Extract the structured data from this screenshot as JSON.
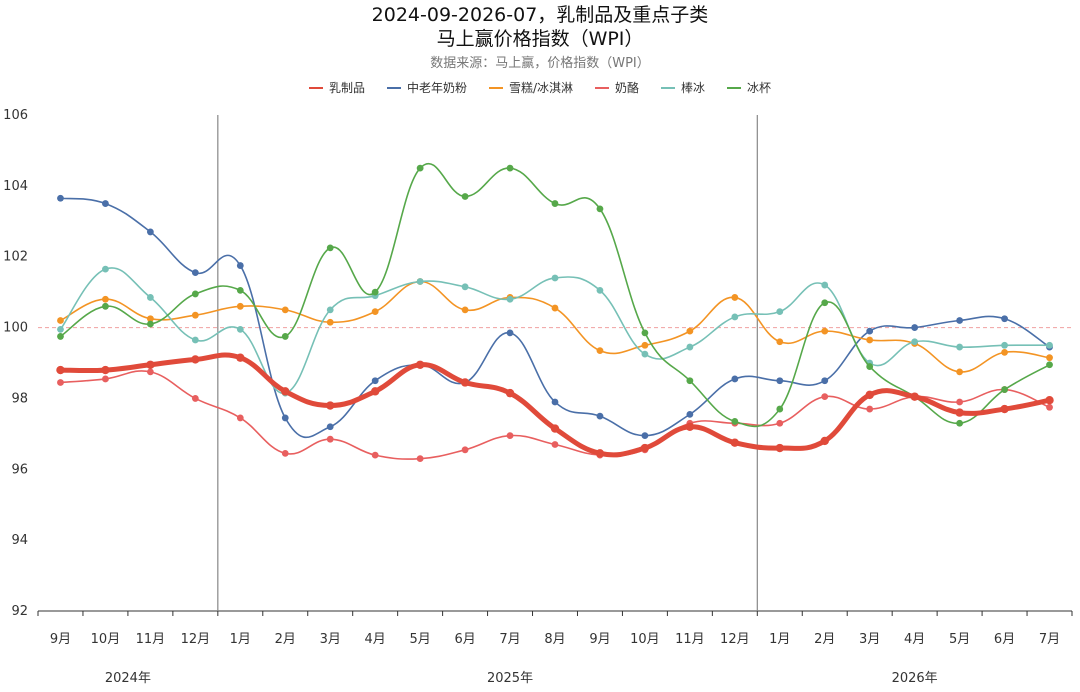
{
  "chart_data": {
    "type": "line",
    "title": "2024-09-2026-07，乳制品及重点子类",
    "title_line2": "马上赢价格指数（WPI）",
    "subtitle": "数据来源：马上赢，价格指数（WPI）",
    "categories": [
      "9月",
      "10月",
      "11月",
      "12月",
      "1月",
      "2月",
      "3月",
      "4月",
      "5月",
      "6月",
      "7月",
      "8月",
      "9月",
      "10月",
      "11月",
      "12月",
      "1月",
      "2月",
      "3月",
      "4月",
      "5月",
      "6月",
      "7月"
    ],
    "year_labels": [
      {
        "label": "2024年",
        "index": 1.5
      },
      {
        "label": "2025年",
        "index": 10
      },
      {
        "label": "2026年",
        "index": 19
      }
    ],
    "year_separators_after_index": [
      3,
      15
    ],
    "ylim": [
      92,
      106
    ],
    "yticks": [
      92,
      94,
      96,
      98,
      100,
      102,
      104,
      106
    ],
    "reference_line": 100,
    "grid": false,
    "legend_position": "top",
    "series": [
      {
        "name": "乳制品",
        "color": "#e04a3a",
        "emphasis": true,
        "values": [
          98.8,
          98.8,
          98.95,
          99.1,
          99.15,
          98.2,
          97.8,
          98.2,
          98.95,
          98.45,
          98.15,
          97.15,
          96.45,
          96.6,
          97.2,
          96.75,
          96.6,
          96.8,
          98.1,
          98.05,
          97.6,
          97.7,
          97.95
        ]
      },
      {
        "name": "中老年奶粉",
        "color": "#4a6fa8",
        "values": [
          103.65,
          103.5,
          102.7,
          101.55,
          101.75,
          97.45,
          97.2,
          98.5,
          98.95,
          98.45,
          99.85,
          97.9,
          97.5,
          96.95,
          97.55,
          98.55,
          98.5,
          98.5,
          99.9,
          100.0,
          100.2,
          100.25,
          99.45
        ]
      },
      {
        "name": "雪糕/冰淇淋",
        "color": "#f39424",
        "values": [
          100.2,
          100.8,
          100.25,
          100.35,
          100.6,
          100.5,
          100.15,
          100.45,
          101.3,
          100.5,
          100.85,
          100.55,
          99.35,
          99.5,
          99.9,
          100.85,
          99.6,
          99.9,
          99.65,
          99.55,
          98.75,
          99.3,
          99.15
        ]
      },
      {
        "name": "奶酪",
        "color": "#e85f5f",
        "values": [
          98.45,
          98.55,
          98.75,
          98.0,
          97.45,
          96.45,
          96.85,
          96.4,
          96.3,
          96.55,
          96.95,
          96.7,
          96.4,
          96.55,
          97.3,
          97.3,
          97.3,
          98.05,
          97.7,
          98.05,
          97.9,
          98.25,
          97.75
        ]
      },
      {
        "name": "棒冰",
        "color": "#76c0b6",
        "values": [
          99.95,
          101.65,
          100.85,
          99.65,
          99.95,
          98.15,
          100.5,
          100.9,
          101.3,
          101.15,
          100.8,
          101.4,
          101.05,
          99.25,
          99.45,
          100.3,
          100.45,
          101.2,
          99.0,
          99.6,
          99.45,
          99.5,
          99.5
        ]
      },
      {
        "name": "冰杯",
        "color": "#56a84a",
        "values": [
          99.75,
          100.6,
          100.1,
          100.95,
          101.05,
          99.75,
          102.25,
          101.0,
          104.5,
          103.7,
          104.5,
          103.5,
          103.35,
          99.85,
          98.5,
          97.35,
          97.7,
          100.7,
          98.9,
          98.05,
          97.3,
          98.25,
          98.95
        ]
      }
    ]
  }
}
